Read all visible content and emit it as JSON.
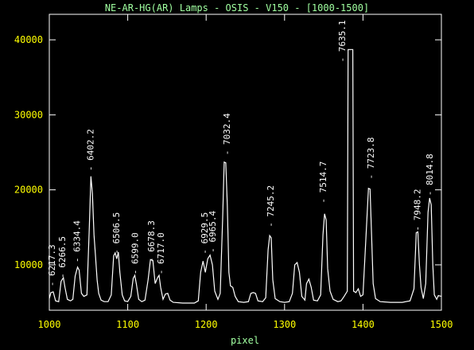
{
  "chart_data": {
    "type": "line",
    "title": "NE-AR-HG(AR) Lamps - OSIS - V150 - [1000-1500]",
    "xlabel": "pixel",
    "xlim": [
      1000,
      1500
    ],
    "xticks": [
      1000,
      1100,
      1200,
      1300,
      1400,
      1500
    ],
    "ylim": [
      3950,
      43400
    ],
    "yticks": [
      10000,
      20000,
      30000,
      40000
    ],
    "color": "#ffffff",
    "x": [
      1000,
      1002,
      1005,
      1008,
      1012,
      1015,
      1018,
      1020,
      1023,
      1027,
      1030,
      1033,
      1036,
      1038,
      1041,
      1044,
      1048,
      1051,
      1053,
      1055,
      1057,
      1059,
      1061,
      1063,
      1066,
      1070,
      1075,
      1079,
      1082,
      1084,
      1086,
      1088,
      1090,
      1093,
      1096,
      1100,
      1104,
      1107,
      1109,
      1111,
      1114,
      1118,
      1122,
      1126,
      1129,
      1132,
      1135,
      1138,
      1140,
      1142,
      1145,
      1148,
      1151,
      1154,
      1158,
      1170,
      1185,
      1190,
      1193,
      1196,
      1199,
      1202,
      1205,
      1208,
      1211,
      1215,
      1218,
      1221,
      1223,
      1225,
      1227,
      1229,
      1231,
      1234,
      1237,
      1241,
      1248,
      1254,
      1257,
      1260,
      1263,
      1266,
      1272,
      1276,
      1279,
      1281,
      1283,
      1285,
      1288,
      1294,
      1300,
      1306,
      1310,
      1313,
      1316,
      1319,
      1322,
      1326,
      1328,
      1331,
      1334,
      1337,
      1342,
      1346,
      1349,
      1351,
      1353,
      1355,
      1358,
      1362,
      1368,
      1372,
      1376,
      1380,
      1381,
      1387,
      1388,
      1391,
      1394,
      1397,
      1400,
      1404,
      1407,
      1409,
      1411,
      1413,
      1416,
      1422,
      1435,
      1450,
      1460,
      1465,
      1468,
      1470,
      1472,
      1474,
      1477,
      1480,
      1483,
      1485,
      1487,
      1489,
      1491,
      1494,
      1496,
      1500
    ],
    "values": [
      5500,
      6300,
      6400,
      5200,
      5100,
      7800,
      8300,
      7000,
      5400,
      5200,
      5400,
      8500,
      9700,
      9300,
      6200,
      5800,
      6000,
      15000,
      21800,
      19500,
      14000,
      11000,
      8000,
      6200,
      5300,
      5100,
      5100,
      6000,
      11200,
      11600,
      10800,
      11700,
      9000,
      6000,
      5200,
      5100,
      5800,
      8200,
      8600,
      7500,
      5400,
      5100,
      5300,
      8000,
      10700,
      10600,
      7500,
      8300,
      8600,
      7000,
      5400,
      6100,
      6200,
      5300,
      5000,
      4900,
      4900,
      5200,
      9000,
      10500,
      9000,
      10800,
      11300,
      10000,
      6500,
      5400,
      6200,
      16000,
      23700,
      23600,
      18000,
      9000,
      7200,
      7000,
      5800,
      5100,
      5000,
      5100,
      6200,
      6300,
      6200,
      5200,
      5100,
      5600,
      12000,
      13900,
      13600,
      8000,
      5500,
      5100,
      5000,
      5100,
      6200,
      10000,
      10300,
      9000,
      5800,
      5300,
      7500,
      8100,
      7000,
      5300,
      5200,
      6000,
      14000,
      16800,
      16000,
      9500,
      6500,
      5400,
      5100,
      5200,
      5800,
      6500,
      38700,
      38700,
      6500,
      6300,
      6800,
      5800,
      6000,
      14000,
      20200,
      20100,
      14000,
      7500,
      5500,
      5100,
      5000,
      5000,
      5200,
      6800,
      14300,
      14400,
      10000,
      7000,
      5500,
      7500,
      17000,
      18900,
      18000,
      10000,
      6000,
      5400,
      5900,
      5800
    ],
    "annotations": [
      {
        "text": "- 6217.3",
        "x": 1004,
        "y": 7100
      },
      {
        "text": "- 6266.5",
        "x": 1017,
        "y": 8200
      },
      {
        "text": "- 6334.4",
        "x": 1036,
        "y": 10300
      },
      {
        "text": "- 6402.2",
        "x": 1053,
        "y": 22500
      },
      {
        "text": "- 6506.5",
        "x": 1086,
        "y": 11400
      },
      {
        "text": "- 6599.0",
        "x": 1110,
        "y": 8700
      },
      {
        "text": "- 6678.3",
        "x": 1131,
        "y": 10300
      },
      {
        "text": "- 6717.0",
        "x": 1143,
        "y": 8700
      },
      {
        "text": "- 6929.5",
        "x": 1199,
        "y": 11400
      },
      {
        "text": "- 6965.4",
        "x": 1209,
        "y": 11600
      },
      {
        "text": "- 7032.4",
        "x": 1227,
        "y": 24600
      },
      {
        "text": "- 7245.2",
        "x": 1283,
        "y": 15000
      },
      {
        "text": "- 7514.7",
        "x": 1350,
        "y": 18200
      },
      {
        "text": "- 7635.1",
        "x": 1374,
        "y": 37000
      },
      {
        "text": "- 7723.8",
        "x": 1411,
        "y": 21400
      },
      {
        "text": "- 7948.2",
        "x": 1470,
        "y": 14500
      },
      {
        "text": "- 8014.8",
        "x": 1486,
        "y": 19200
      }
    ]
  }
}
